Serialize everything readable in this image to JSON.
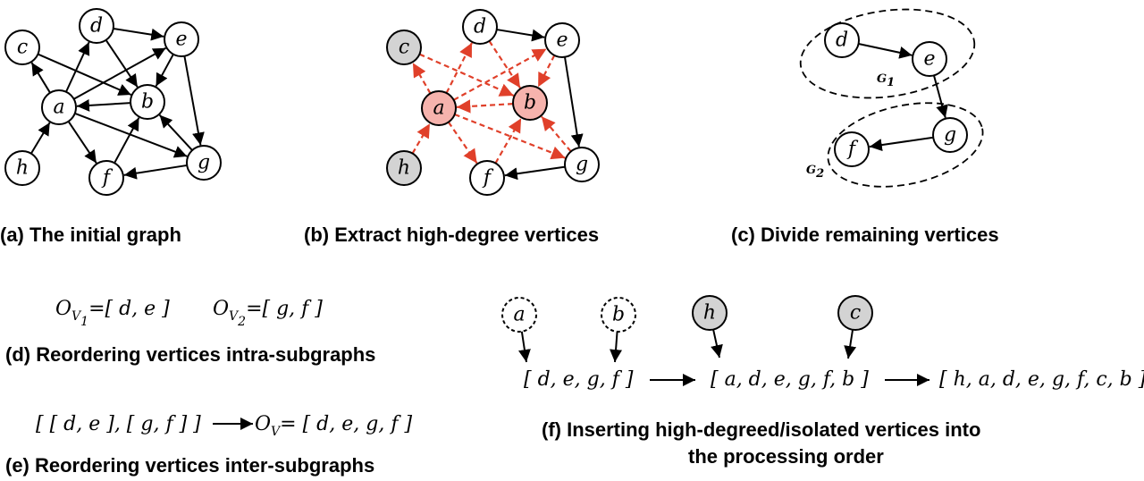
{
  "colors": {
    "edge": "#000000",
    "highlight_edge": "#e0402a",
    "highlight_fill": "#f6b3ad",
    "highlight_stroke": "#e0402a",
    "gray_fill": "#d3d3d3",
    "white_fill": "#ffffff"
  },
  "panels": {
    "a": {
      "caption": "(a) The initial graph"
    },
    "b": {
      "caption": "(b) Extract high-degree vertices"
    },
    "c": {
      "caption": "(c) Divide remaining vertices",
      "g1": "G",
      "g1_sub": "1",
      "g2": "G",
      "g2_sub": "2"
    },
    "d": {
      "caption": "(d) Reordering vertices intra-subgraphs",
      "o": "O",
      "v": "V",
      "sub1": "1",
      "sub2": "2",
      "list1": "=[ d, e ]",
      "list2": "=[ g, f ]"
    },
    "e": {
      "caption": "(e) Reordering vertices inter-subgraphs",
      "left": "[ [ d, e ], [ g, f ] ]",
      "o": "O",
      "v": "V",
      "right": "= [ d, e, g, f ]"
    },
    "f": {
      "caption_line1": "(f) Inserting high-degreed/isolated vertices into",
      "caption_line2": "the processing order",
      "list1": "[ d, e, g, f ]",
      "list2": "[ a, d, e, g, f, b ]",
      "list3": "[ h, a, d, e, g, f, c, b ]"
    }
  },
  "vertex_names": {
    "a": "a",
    "b": "b",
    "c": "c",
    "d": "d",
    "e": "e",
    "f": "f",
    "g": "g",
    "h": "h"
  }
}
